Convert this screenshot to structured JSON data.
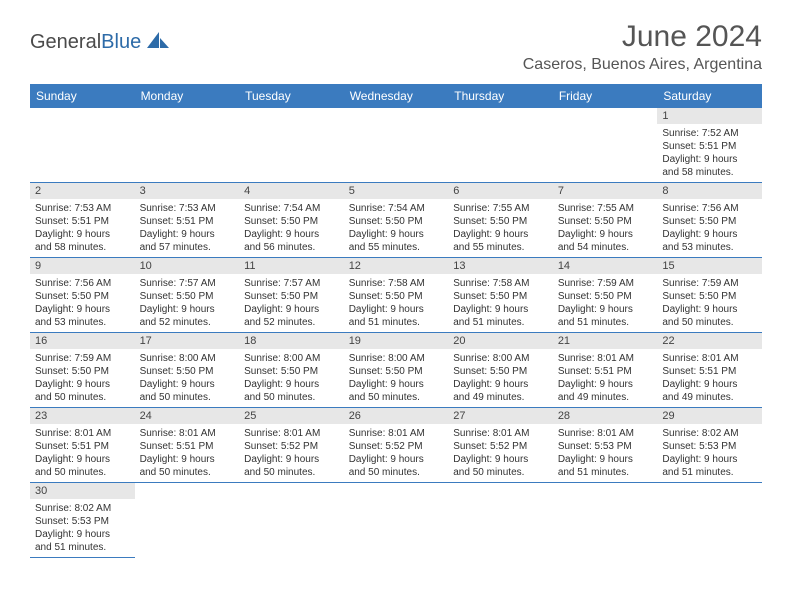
{
  "logo": {
    "text1": "General",
    "text2": "Blue"
  },
  "title": "June 2024",
  "location": "Caseros, Buenos Aires, Argentina",
  "colors": {
    "header_bg": "#3b7bbf",
    "header_text": "#ffffff",
    "daynum_bg": "#e7e7e7",
    "border": "#3b7bbf",
    "logo_gray": "#4a4a4a",
    "logo_blue": "#2d6ba8"
  },
  "day_headers": [
    "Sunday",
    "Monday",
    "Tuesday",
    "Wednesday",
    "Thursday",
    "Friday",
    "Saturday"
  ],
  "weeks": [
    [
      null,
      null,
      null,
      null,
      null,
      null,
      {
        "n": "1",
        "sr": "Sunrise: 7:52 AM",
        "ss": "Sunset: 5:51 PM",
        "dl1": "Daylight: 9 hours",
        "dl2": "and 58 minutes."
      }
    ],
    [
      {
        "n": "2",
        "sr": "Sunrise: 7:53 AM",
        "ss": "Sunset: 5:51 PM",
        "dl1": "Daylight: 9 hours",
        "dl2": "and 58 minutes."
      },
      {
        "n": "3",
        "sr": "Sunrise: 7:53 AM",
        "ss": "Sunset: 5:51 PM",
        "dl1": "Daylight: 9 hours",
        "dl2": "and 57 minutes."
      },
      {
        "n": "4",
        "sr": "Sunrise: 7:54 AM",
        "ss": "Sunset: 5:50 PM",
        "dl1": "Daylight: 9 hours",
        "dl2": "and 56 minutes."
      },
      {
        "n": "5",
        "sr": "Sunrise: 7:54 AM",
        "ss": "Sunset: 5:50 PM",
        "dl1": "Daylight: 9 hours",
        "dl2": "and 55 minutes."
      },
      {
        "n": "6",
        "sr": "Sunrise: 7:55 AM",
        "ss": "Sunset: 5:50 PM",
        "dl1": "Daylight: 9 hours",
        "dl2": "and 55 minutes."
      },
      {
        "n": "7",
        "sr": "Sunrise: 7:55 AM",
        "ss": "Sunset: 5:50 PM",
        "dl1": "Daylight: 9 hours",
        "dl2": "and 54 minutes."
      },
      {
        "n": "8",
        "sr": "Sunrise: 7:56 AM",
        "ss": "Sunset: 5:50 PM",
        "dl1": "Daylight: 9 hours",
        "dl2": "and 53 minutes."
      }
    ],
    [
      {
        "n": "9",
        "sr": "Sunrise: 7:56 AM",
        "ss": "Sunset: 5:50 PM",
        "dl1": "Daylight: 9 hours",
        "dl2": "and 53 minutes."
      },
      {
        "n": "10",
        "sr": "Sunrise: 7:57 AM",
        "ss": "Sunset: 5:50 PM",
        "dl1": "Daylight: 9 hours",
        "dl2": "and 52 minutes."
      },
      {
        "n": "11",
        "sr": "Sunrise: 7:57 AM",
        "ss": "Sunset: 5:50 PM",
        "dl1": "Daylight: 9 hours",
        "dl2": "and 52 minutes."
      },
      {
        "n": "12",
        "sr": "Sunrise: 7:58 AM",
        "ss": "Sunset: 5:50 PM",
        "dl1": "Daylight: 9 hours",
        "dl2": "and 51 minutes."
      },
      {
        "n": "13",
        "sr": "Sunrise: 7:58 AM",
        "ss": "Sunset: 5:50 PM",
        "dl1": "Daylight: 9 hours",
        "dl2": "and 51 minutes."
      },
      {
        "n": "14",
        "sr": "Sunrise: 7:59 AM",
        "ss": "Sunset: 5:50 PM",
        "dl1": "Daylight: 9 hours",
        "dl2": "and 51 minutes."
      },
      {
        "n": "15",
        "sr": "Sunrise: 7:59 AM",
        "ss": "Sunset: 5:50 PM",
        "dl1": "Daylight: 9 hours",
        "dl2": "and 50 minutes."
      }
    ],
    [
      {
        "n": "16",
        "sr": "Sunrise: 7:59 AM",
        "ss": "Sunset: 5:50 PM",
        "dl1": "Daylight: 9 hours",
        "dl2": "and 50 minutes."
      },
      {
        "n": "17",
        "sr": "Sunrise: 8:00 AM",
        "ss": "Sunset: 5:50 PM",
        "dl1": "Daylight: 9 hours",
        "dl2": "and 50 minutes."
      },
      {
        "n": "18",
        "sr": "Sunrise: 8:00 AM",
        "ss": "Sunset: 5:50 PM",
        "dl1": "Daylight: 9 hours",
        "dl2": "and 50 minutes."
      },
      {
        "n": "19",
        "sr": "Sunrise: 8:00 AM",
        "ss": "Sunset: 5:50 PM",
        "dl1": "Daylight: 9 hours",
        "dl2": "and 50 minutes."
      },
      {
        "n": "20",
        "sr": "Sunrise: 8:00 AM",
        "ss": "Sunset: 5:50 PM",
        "dl1": "Daylight: 9 hours",
        "dl2": "and 49 minutes."
      },
      {
        "n": "21",
        "sr": "Sunrise: 8:01 AM",
        "ss": "Sunset: 5:51 PM",
        "dl1": "Daylight: 9 hours",
        "dl2": "and 49 minutes."
      },
      {
        "n": "22",
        "sr": "Sunrise: 8:01 AM",
        "ss": "Sunset: 5:51 PM",
        "dl1": "Daylight: 9 hours",
        "dl2": "and 49 minutes."
      }
    ],
    [
      {
        "n": "23",
        "sr": "Sunrise: 8:01 AM",
        "ss": "Sunset: 5:51 PM",
        "dl1": "Daylight: 9 hours",
        "dl2": "and 50 minutes."
      },
      {
        "n": "24",
        "sr": "Sunrise: 8:01 AM",
        "ss": "Sunset: 5:51 PM",
        "dl1": "Daylight: 9 hours",
        "dl2": "and 50 minutes."
      },
      {
        "n": "25",
        "sr": "Sunrise: 8:01 AM",
        "ss": "Sunset: 5:52 PM",
        "dl1": "Daylight: 9 hours",
        "dl2": "and 50 minutes."
      },
      {
        "n": "26",
        "sr": "Sunrise: 8:01 AM",
        "ss": "Sunset: 5:52 PM",
        "dl1": "Daylight: 9 hours",
        "dl2": "and 50 minutes."
      },
      {
        "n": "27",
        "sr": "Sunrise: 8:01 AM",
        "ss": "Sunset: 5:52 PM",
        "dl1": "Daylight: 9 hours",
        "dl2": "and 50 minutes."
      },
      {
        "n": "28",
        "sr": "Sunrise: 8:01 AM",
        "ss": "Sunset: 5:53 PM",
        "dl1": "Daylight: 9 hours",
        "dl2": "and 51 minutes."
      },
      {
        "n": "29",
        "sr": "Sunrise: 8:02 AM",
        "ss": "Sunset: 5:53 PM",
        "dl1": "Daylight: 9 hours",
        "dl2": "and 51 minutes."
      }
    ],
    [
      {
        "n": "30",
        "sr": "Sunrise: 8:02 AM",
        "ss": "Sunset: 5:53 PM",
        "dl1": "Daylight: 9 hours",
        "dl2": "and 51 minutes."
      },
      null,
      null,
      null,
      null,
      null,
      null
    ]
  ]
}
